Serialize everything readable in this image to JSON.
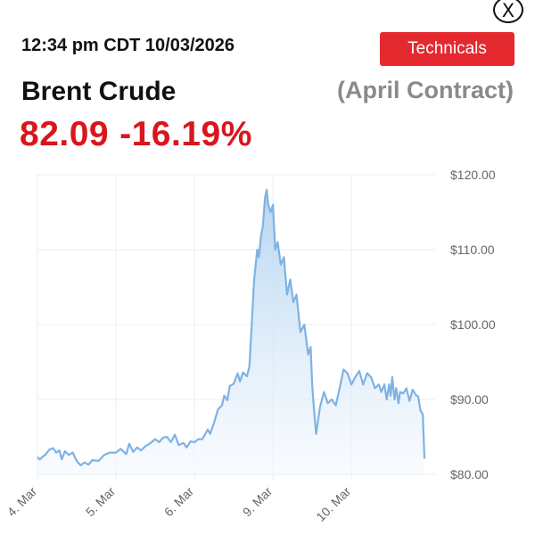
{
  "header": {
    "timestamp": "12:34 pm CDT 10/03/2026",
    "technicals_label": "Technicals",
    "close_label": "X"
  },
  "quote": {
    "name": "Brent Crude",
    "contract": "(April Contract)",
    "price": "82.09",
    "change_pct": "-16.19%"
  },
  "colors": {
    "accent": "#e42a2f",
    "price_down": "#d9161c",
    "line": "#7fb2e3",
    "area_top": "#b3d3f1",
    "area_bottom": "#f4f9fe",
    "muted_text": "#8a8a8a"
  },
  "chart_data": {
    "type": "area",
    "title": "",
    "xlabel": "",
    "ylabel": "",
    "y_axis_side": "right",
    "grid": true,
    "ylim": [
      80,
      120
    ],
    "y_ticks": [
      120,
      110,
      100,
      90,
      80
    ],
    "y_tick_labels": [
      "$120.00",
      "$110.00",
      "$100.00",
      "$90.00",
      "$80.00"
    ],
    "x_range": [
      0,
      4.93
    ],
    "x_ticks": [
      0,
      1,
      2,
      3,
      4
    ],
    "x_tick_labels": [
      "4. Mar",
      "5. Mar",
      "6. Mar",
      "9. Mar",
      "10. Mar"
    ],
    "x_note": "x = trading-session index; integer x is the labeled day",
    "series": [
      {
        "x": [
          0,
          0.03,
          0.07,
          0.1,
          0.15,
          0.2,
          0.24,
          0.28,
          0.31,
          0.35,
          0.4,
          0.45,
          0.5,
          0.55,
          0.6,
          0.65,
          0.7,
          0.78,
          0.85,
          0.92,
          1.0,
          1.06,
          1.13,
          1.17,
          1.22,
          1.27,
          1.32,
          1.38,
          1.43,
          1.5,
          1.55,
          1.6,
          1.65,
          1.7,
          1.75,
          1.8,
          1.86,
          1.9,
          1.95,
          2.0,
          2.05,
          2.1,
          2.17,
          2.2,
          2.25,
          2.3,
          2.35,
          2.38,
          2.42,
          2.45,
          2.5,
          2.55,
          2.58,
          2.62,
          2.67,
          2.7,
          2.73,
          2.76,
          2.8,
          2.82,
          2.85,
          2.87,
          2.9,
          2.92,
          2.94,
          2.97,
          3.0,
          3.03,
          3.06,
          3.1,
          3.14,
          3.18,
          3.22,
          3.26,
          3.3,
          3.35,
          3.4,
          3.45,
          3.48,
          3.5,
          3.52,
          3.55,
          3.6,
          3.65,
          3.7,
          3.75,
          3.8,
          3.84,
          3.87,
          3.9,
          3.95,
          4.0,
          4.05,
          4.1,
          4.15,
          4.2,
          4.25,
          4.3,
          4.35,
          4.38,
          4.42,
          4.45,
          4.48,
          4.5,
          4.52,
          4.55,
          4.57,
          4.6,
          4.62,
          4.66,
          4.7,
          4.74,
          4.78,
          4.82,
          4.85,
          4.88,
          4.91,
          4.93
        ],
        "values": [
          82.3,
          82.0,
          82.4,
          82.6,
          83.3,
          83.5,
          82.9,
          83.2,
          82.0,
          83.1,
          82.6,
          82.9,
          81.8,
          81.2,
          81.6,
          81.3,
          81.9,
          81.8,
          82.6,
          82.9,
          82.9,
          83.4,
          82.7,
          84.1,
          83.0,
          83.6,
          83.2,
          83.8,
          84.1,
          84.7,
          84.3,
          84.9,
          85.0,
          84.3,
          85.3,
          83.9,
          84.2,
          83.6,
          84.4,
          84.3,
          84.7,
          84.7,
          86.0,
          85.4,
          86.9,
          88.7,
          89.2,
          90.5,
          89.9,
          91.8,
          92.1,
          93.5,
          92.4,
          93.6,
          93.1,
          94.4,
          100.0,
          106.0,
          110.0,
          109.0,
          112.0,
          113.0,
          117.0,
          118.0,
          116.0,
          115.0,
          116.0,
          110.0,
          111.0,
          108.0,
          109.0,
          104.0,
          106.0,
          103.0,
          104.0,
          99.0,
          100.0,
          96.0,
          97.0,
          92.0,
          89.0,
          85.4,
          89.0,
          91.0,
          89.5,
          90.0,
          89.2,
          91.0,
          92.5,
          94.0,
          93.5,
          92.0,
          93.0,
          93.8,
          92.0,
          93.5,
          93.0,
          91.5,
          92.0,
          91.0,
          92.0,
          90.0,
          92.0,
          90.5,
          93.0,
          90.0,
          91.5,
          89.5,
          91.0,
          90.8,
          91.5,
          89.8,
          91.3,
          90.6,
          90.4,
          88.5,
          88.0,
          82.1
        ]
      }
    ]
  }
}
